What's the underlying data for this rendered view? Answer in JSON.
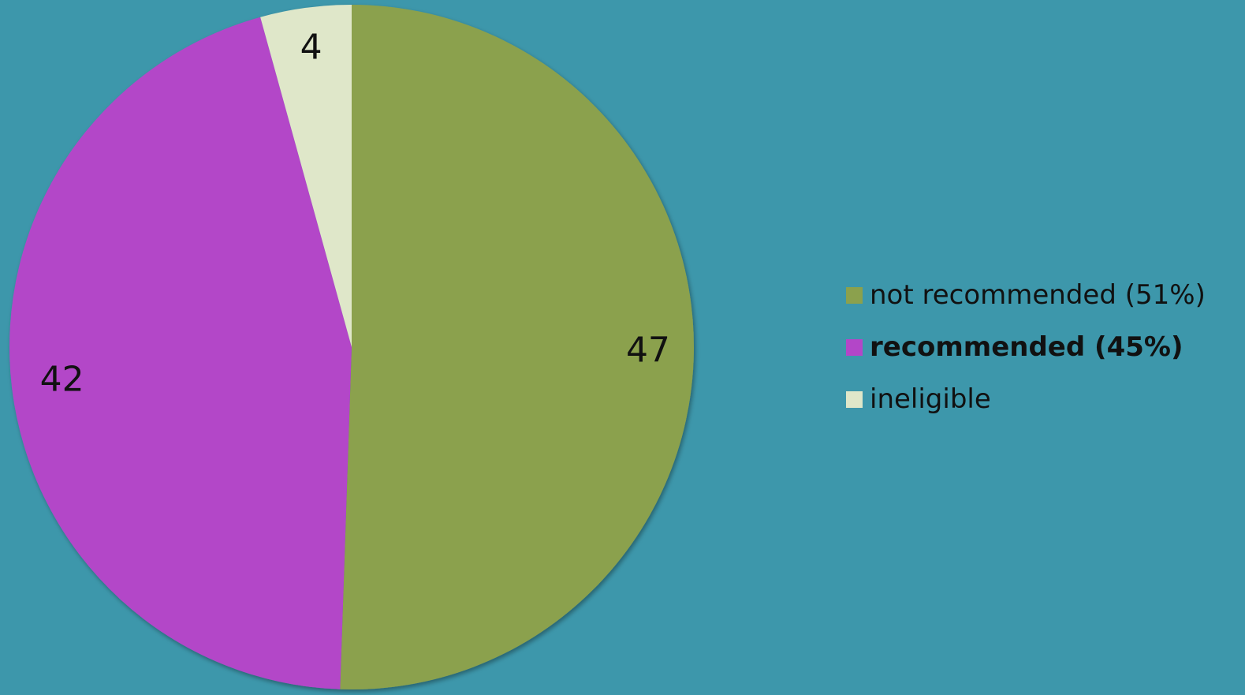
{
  "chart_data": {
    "type": "pie",
    "title": "",
    "slices": [
      {
        "label": "not recommended (51%)",
        "value": 47,
        "value_label": "47",
        "color": "#8ba14d",
        "bold": false
      },
      {
        "label": "recommended (45%)",
        "value": 42,
        "value_label": "42",
        "color": "#b346c8",
        "bold": true
      },
      {
        "label": "ineligible",
        "value": 4,
        "value_label": "4",
        "color": "#dfe7c9",
        "bold": false
      }
    ],
    "start_angle_deg": 0,
    "direction": "clockwise",
    "legend_position": "right",
    "background_color": "#3d97ab"
  }
}
